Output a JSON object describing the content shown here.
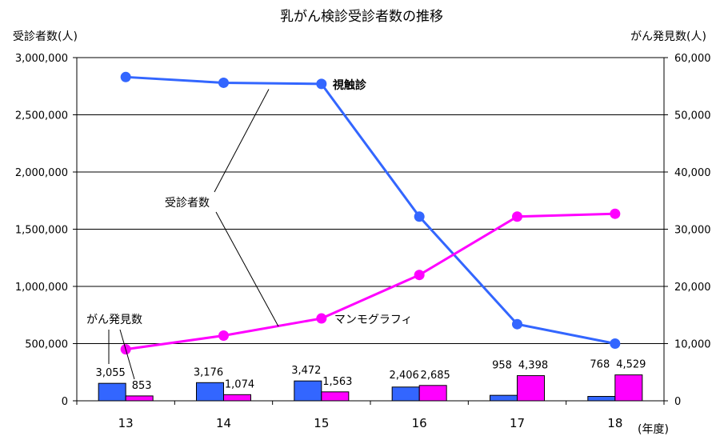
{
  "chart_data": {
    "type": "bar+line",
    "title": "乳がん検診受診者数の推移",
    "ylabel_left": "受診者数(人)",
    "ylabel_right": "がん発見数(人)",
    "xunit": "(年度)",
    "categories": [
      "13",
      "14",
      "15",
      "16",
      "17",
      "18"
    ],
    "ylim_left": [
      0,
      3000000
    ],
    "yticks_left": [
      "0",
      "500,000",
      "1,000,000",
      "1,500,000",
      "2,000,000",
      "2,500,000",
      "3,000,000"
    ],
    "ylim_right": [
      0,
      60000
    ],
    "yticks_right": [
      "0",
      "10,000",
      "20,000",
      "30,000",
      "40,000",
      "50,000",
      "60,000"
    ],
    "grid": true,
    "line_series": [
      {
        "name": "視触診",
        "axis": "left",
        "color": "#3366ff",
        "values": [
          2830000,
          2780000,
          2770000,
          1610000,
          670000,
          500000
        ]
      },
      {
        "name": "マンモグラフィ",
        "axis": "left",
        "color": "#ff00ff",
        "values": [
          450000,
          570000,
          720000,
          1100000,
          1610000,
          1635000
        ]
      }
    ],
    "bar_series": [
      {
        "name": "視触診 がん発見数",
        "axis": "right",
        "color": "#3366ff",
        "values": [
          3055,
          3176,
          3472,
          2406,
          958,
          768
        ],
        "labels": [
          "3,055",
          "3,176",
          "3,472",
          "2,406",
          "958",
          "768"
        ]
      },
      {
        "name": "マンモグラフィ がん発見数",
        "axis": "right",
        "color": "#ff00ff",
        "values": [
          853,
          1074,
          1563,
          2685,
          4398,
          4529
        ],
        "labels": [
          "853",
          "1,074",
          "1,563",
          "2,685",
          "4,398",
          "4,529"
        ]
      }
    ],
    "annotations": {
      "line_group_label": "受診者数",
      "bar_group_label": "がん発見数"
    }
  }
}
